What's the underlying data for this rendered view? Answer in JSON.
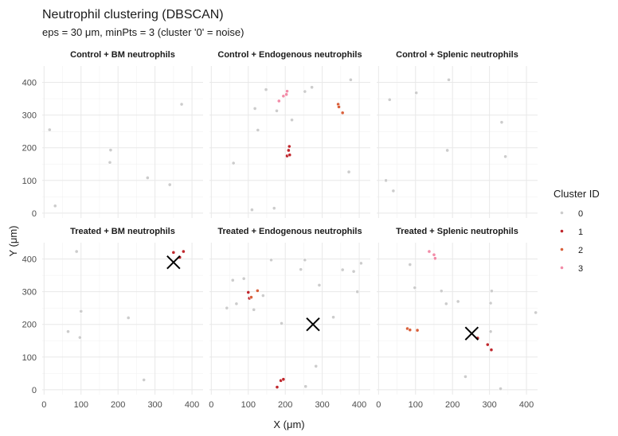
{
  "chart_data": {
    "type": "scatter",
    "title": "Neutrophil clustering (DBSCAN)",
    "subtitle": "eps = 30 μm, minPts = 3 (cluster '0' = noise)",
    "xlabel": "X (μm)",
    "ylabel": "Y (μm)",
    "xlim": [
      -5,
      430
    ],
    "ylim": [
      -15,
      450
    ],
    "x_ticks": [
      0,
      100,
      200,
      300,
      400
    ],
    "y_ticks": [
      0,
      100,
      200,
      300,
      400
    ],
    "grid": true,
    "legend": {
      "title": "Cluster ID",
      "position": "right",
      "entries": [
        {
          "label": "0",
          "color": "#cccccc"
        },
        {
          "label": "1",
          "color": "#c0272d"
        },
        {
          "label": "2",
          "color": "#d9603b"
        },
        {
          "label": "3",
          "color": "#f28ca8"
        }
      ]
    },
    "panels": [
      {
        "title": "Control + BM neutrophils",
        "points": [
          {
            "x": 15,
            "y": 255,
            "cluster": "0"
          },
          {
            "x": 30,
            "y": 22,
            "cluster": "0"
          },
          {
            "x": 180,
            "y": 193,
            "cluster": "0"
          },
          {
            "x": 178,
            "y": 155,
            "cluster": "0"
          },
          {
            "x": 280,
            "y": 108,
            "cluster": "0"
          },
          {
            "x": 340,
            "y": 87,
            "cluster": "0"
          },
          {
            "x": 372,
            "y": 333,
            "cluster": "0"
          }
        ],
        "markers": []
      },
      {
        "title": "Control + Endogenous neutrophils",
        "points": [
          {
            "x": 60,
            "y": 153,
            "cluster": "0"
          },
          {
            "x": 110,
            "y": 10,
            "cluster": "0"
          },
          {
            "x": 118,
            "y": 320,
            "cluster": "0"
          },
          {
            "x": 126,
            "y": 254,
            "cluster": "0"
          },
          {
            "x": 148,
            "y": 378,
            "cluster": "0"
          },
          {
            "x": 170,
            "y": 15,
            "cluster": "0"
          },
          {
            "x": 177,
            "y": 313,
            "cluster": "0"
          },
          {
            "x": 218,
            "y": 285,
            "cluster": "0"
          },
          {
            "x": 253,
            "y": 372,
            "cluster": "0"
          },
          {
            "x": 272,
            "y": 385,
            "cluster": "0"
          },
          {
            "x": 372,
            "y": 126,
            "cluster": "0"
          },
          {
            "x": 377,
            "y": 408,
            "cluster": "0"
          },
          {
            "x": 205,
            "y": 175,
            "cluster": "1"
          },
          {
            "x": 212,
            "y": 178,
            "cluster": "1"
          },
          {
            "x": 209,
            "y": 192,
            "cluster": "1"
          },
          {
            "x": 211,
            "y": 204,
            "cluster": "1"
          },
          {
            "x": 343,
            "y": 333,
            "cluster": "2"
          },
          {
            "x": 345,
            "y": 325,
            "cluster": "2"
          },
          {
            "x": 355,
            "y": 307,
            "cluster": "2"
          },
          {
            "x": 183,
            "y": 343,
            "cluster": "3"
          },
          {
            "x": 195,
            "y": 358,
            "cluster": "3"
          },
          {
            "x": 203,
            "y": 363,
            "cluster": "3"
          },
          {
            "x": 205,
            "y": 373,
            "cluster": "3"
          }
        ],
        "markers": []
      },
      {
        "title": "Control + Splenic neutrophils",
        "points": [
          {
            "x": 20,
            "y": 100,
            "cluster": "0"
          },
          {
            "x": 30,
            "y": 347,
            "cluster": "0"
          },
          {
            "x": 40,
            "y": 68,
            "cluster": "0"
          },
          {
            "x": 102,
            "y": 368,
            "cluster": "0"
          },
          {
            "x": 186,
            "y": 192,
            "cluster": "0"
          },
          {
            "x": 190,
            "y": 408,
            "cluster": "0"
          },
          {
            "x": 333,
            "y": 278,
            "cluster": "0"
          },
          {
            "x": 343,
            "y": 173,
            "cluster": "0"
          }
        ],
        "markers": []
      },
      {
        "title": "Treated + BM neutrophils",
        "points": [
          {
            "x": 65,
            "y": 178,
            "cluster": "0"
          },
          {
            "x": 88,
            "y": 423,
            "cluster": "0"
          },
          {
            "x": 97,
            "y": 160,
            "cluster": "0"
          },
          {
            "x": 100,
            "y": 240,
            "cluster": "0"
          },
          {
            "x": 228,
            "y": 220,
            "cluster": "0"
          },
          {
            "x": 270,
            "y": 30,
            "cluster": "0"
          },
          {
            "x": 350,
            "y": 420,
            "cluster": "1"
          },
          {
            "x": 367,
            "y": 405,
            "cluster": "1"
          },
          {
            "x": 377,
            "y": 423,
            "cluster": "1"
          }
        ],
        "markers": [
          {
            "x": 350,
            "y": 390
          }
        ]
      },
      {
        "title": "Treated + Endogenous neutrophils",
        "points": [
          {
            "x": 42,
            "y": 250,
            "cluster": "0"
          },
          {
            "x": 58,
            "y": 335,
            "cluster": "0"
          },
          {
            "x": 68,
            "y": 263,
            "cluster": "0"
          },
          {
            "x": 88,
            "y": 340,
            "cluster": "0"
          },
          {
            "x": 115,
            "y": 245,
            "cluster": "0"
          },
          {
            "x": 140,
            "y": 288,
            "cluster": "0"
          },
          {
            "x": 162,
            "y": 397,
            "cluster": "0"
          },
          {
            "x": 190,
            "y": 203,
            "cluster": "0"
          },
          {
            "x": 242,
            "y": 368,
            "cluster": "0"
          },
          {
            "x": 253,
            "y": 397,
            "cluster": "0"
          },
          {
            "x": 255,
            "y": 10,
            "cluster": "0"
          },
          {
            "x": 283,
            "y": 72,
            "cluster": "0"
          },
          {
            "x": 292,
            "y": 320,
            "cluster": "0"
          },
          {
            "x": 330,
            "y": 222,
            "cluster": "0"
          },
          {
            "x": 355,
            "y": 367,
            "cluster": "0"
          },
          {
            "x": 385,
            "y": 362,
            "cluster": "0"
          },
          {
            "x": 395,
            "y": 300,
            "cluster": "0"
          },
          {
            "x": 405,
            "y": 387,
            "cluster": "0"
          },
          {
            "x": 100,
            "y": 298,
            "cluster": "1"
          },
          {
            "x": 103,
            "y": 280,
            "cluster": "1"
          },
          {
            "x": 178,
            "y": 8,
            "cluster": "1"
          },
          {
            "x": 188,
            "y": 28,
            "cluster": "1"
          },
          {
            "x": 195,
            "y": 32,
            "cluster": "1"
          },
          {
            "x": 108,
            "y": 283,
            "cluster": "2"
          },
          {
            "x": 125,
            "y": 303,
            "cluster": "2"
          }
        ],
        "markers": [
          {
            "x": 275,
            "y": 200
          }
        ]
      },
      {
        "title": "Treated + Splenic neutrophils",
        "points": [
          {
            "x": 85,
            "y": 383,
            "cluster": "0"
          },
          {
            "x": 98,
            "y": 312,
            "cluster": "0"
          },
          {
            "x": 170,
            "y": 302,
            "cluster": "0"
          },
          {
            "x": 183,
            "y": 263,
            "cluster": "0"
          },
          {
            "x": 215,
            "y": 270,
            "cluster": "0"
          },
          {
            "x": 235,
            "y": 40,
            "cluster": "0"
          },
          {
            "x": 303,
            "y": 178,
            "cluster": "0"
          },
          {
            "x": 303,
            "y": 265,
            "cluster": "0"
          },
          {
            "x": 306,
            "y": 302,
            "cluster": "0"
          },
          {
            "x": 330,
            "y": 3,
            "cluster": "0"
          },
          {
            "x": 425,
            "y": 236,
            "cluster": "0"
          },
          {
            "x": 268,
            "y": 158,
            "cluster": "1"
          },
          {
            "x": 295,
            "y": 138,
            "cluster": "1"
          },
          {
            "x": 305,
            "y": 122,
            "cluster": "1"
          },
          {
            "x": 78,
            "y": 187,
            "cluster": "2"
          },
          {
            "x": 85,
            "y": 183,
            "cluster": "2"
          },
          {
            "x": 105,
            "y": 182,
            "cluster": "2"
          },
          {
            "x": 137,
            "y": 423,
            "cluster": "3"
          },
          {
            "x": 150,
            "y": 413,
            "cluster": "3"
          },
          {
            "x": 153,
            "y": 402,
            "cluster": "3"
          }
        ],
        "markers": [
          {
            "x": 252,
            "y": 172
          }
        ]
      }
    ]
  }
}
